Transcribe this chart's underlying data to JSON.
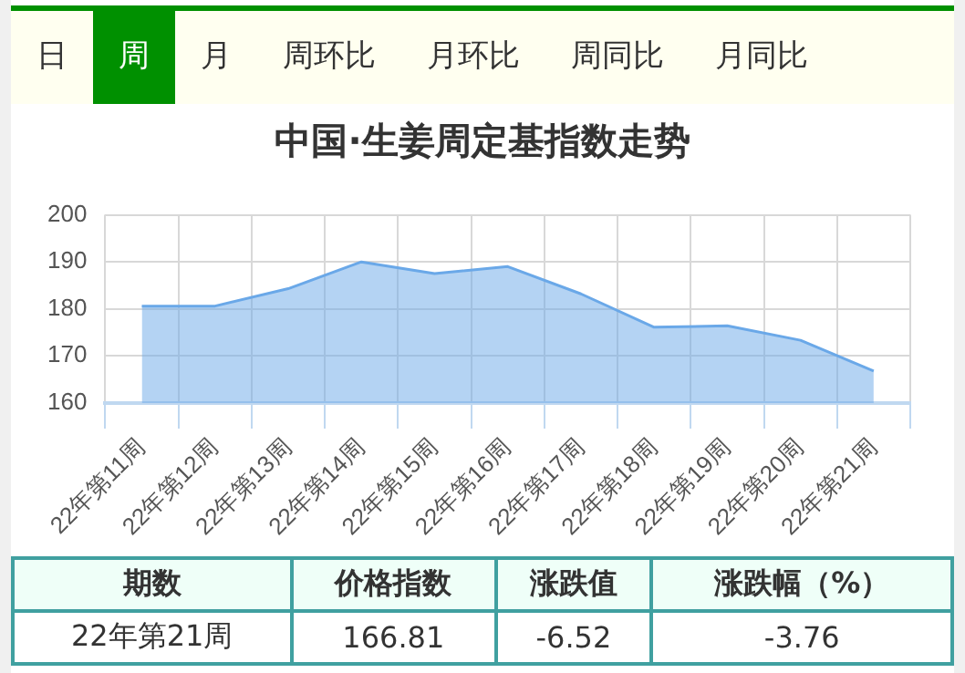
{
  "chart_data": {
    "type": "area",
    "title": "中国·生姜周定基指数走势",
    "categories": [
      "22年第11周",
      "22年第12周",
      "22年第13周",
      "22年第14周",
      "22年第15周",
      "22年第16周",
      "22年第17周",
      "22年第18周",
      "22年第19周",
      "22年第20周",
      "22年第21周"
    ],
    "series": [
      {
        "color": "#6aa8e8",
        "values": [
          180.6,
          180.6,
          184.3,
          190.0,
          187.5,
          189.0,
          183.2,
          176.1,
          176.4,
          173.33,
          166.81
        ]
      }
    ],
    "ylim": [
      160,
      200
    ],
    "yticks": [
      160,
      170,
      180,
      190,
      200
    ],
    "grid": true,
    "legend": false,
    "marker": "none",
    "line_style": "solid",
    "annotations": [
      "日",
      "周",
      "月",
      "周环比",
      "月环比",
      "周同比",
      "月同比",
      "期数",
      "价格指数",
      "涨跌值",
      "涨跌幅（%）",
      "22年第21周",
      "166.81",
      "-6.52",
      "-3.76"
    ]
  }
}
